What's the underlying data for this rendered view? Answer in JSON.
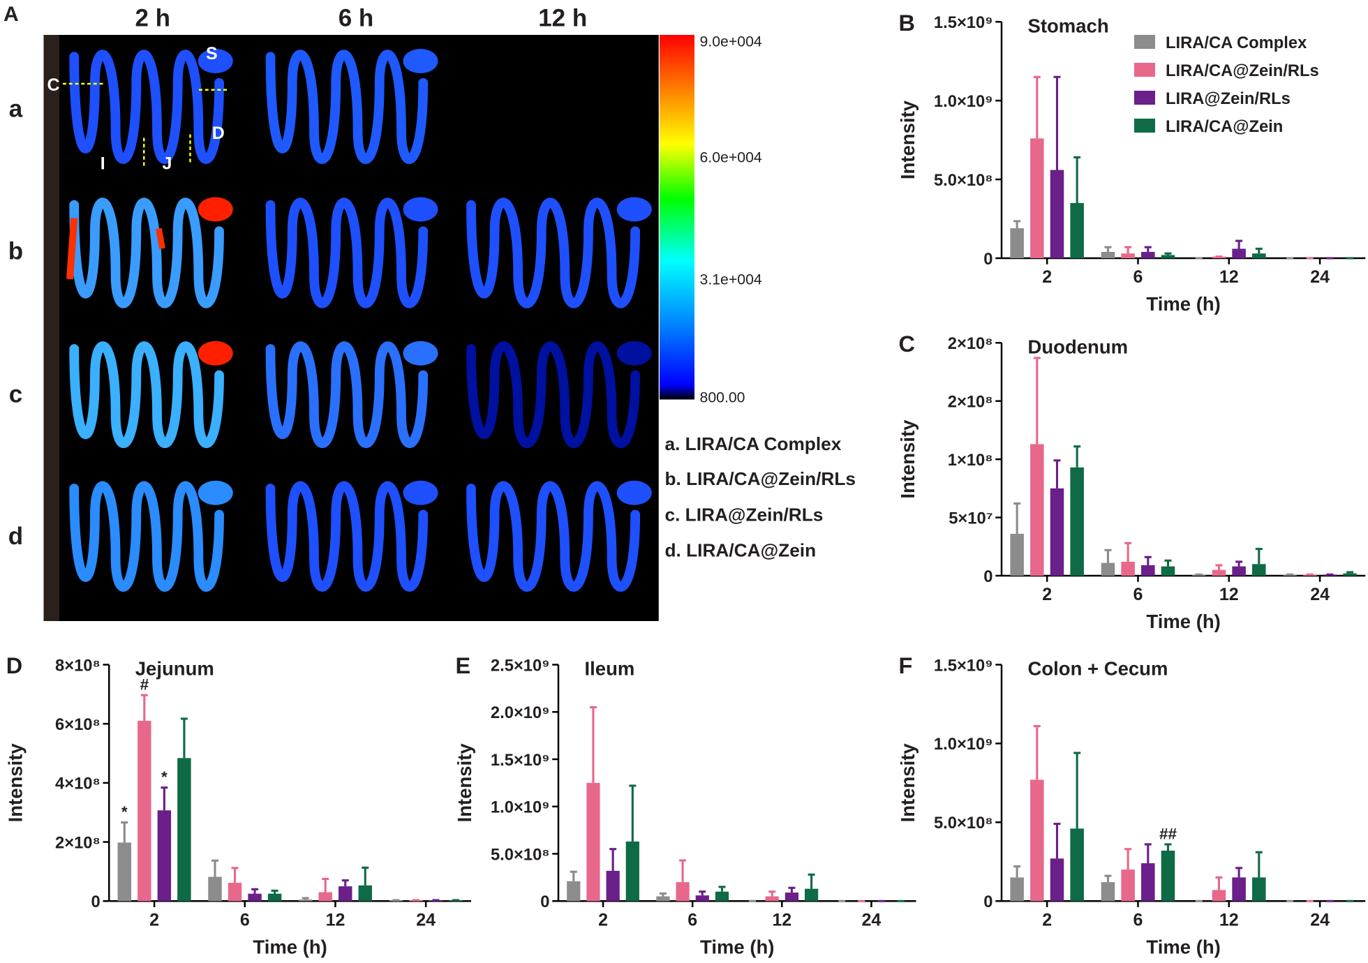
{
  "image_panel": {
    "label": "A",
    "columns": [
      "2 h",
      "6 h",
      "12 h"
    ],
    "rows": [
      "a",
      "b",
      "c",
      "d"
    ],
    "colorbar_labels": [
      "9.0e+004",
      "6.0e+004",
      "3.1e+004",
      "800.00"
    ],
    "region_labels": [
      "S",
      "C",
      "D",
      "I",
      "J"
    ],
    "legend": [
      "a. LIRA/CA Complex",
      "b. LIRA/CA@Zein/RLs",
      "c. LIRA@Zein/RLs",
      "d. LIRA/CA@Zein"
    ]
  },
  "chart_data": [
    {
      "type": "bar",
      "panel": "B",
      "title": "Stomach",
      "x_label": "Time (h)",
      "y_label": "Intensity",
      "legend": "top-right",
      "categories": [
        "2",
        "6",
        "12",
        "24"
      ],
      "ylim": [
        0,
        1500000000
      ],
      "yticks": [
        0,
        {
          "value": 500000000,
          "label": "5.0×10⁸"
        },
        {
          "value": 1000000000,
          "label": "1.0×10⁹"
        },
        {
          "value": 1500000000,
          "label": "1.5×10⁹"
        }
      ],
      "series": [
        {
          "name": "LIRA/CA Complex",
          "color": "#8c8c8c",
          "values": [
            190000000,
            40000000,
            0,
            0
          ],
          "errors": [
            45000000,
            30000000,
            0,
            0
          ]
        },
        {
          "name": "LIRA/CA@Zein/RLs",
          "color": "#e8688c",
          "values": [
            760000000,
            30000000,
            10000000,
            0
          ],
          "errors": [
            390000000,
            40000000,
            0,
            0
          ]
        },
        {
          "name": "LIRA@Zein/RLs",
          "color": "#6a1f8a",
          "values": [
            560000000,
            40000000,
            60000000,
            0
          ],
          "errors": [
            590000000,
            30000000,
            50000000,
            0
          ]
        },
        {
          "name": "LIRA/CA@Zein",
          "color": "#0e6b45",
          "values": [
            350000000,
            20000000,
            30000000,
            0
          ],
          "errors": [
            290000000,
            10000000,
            30000000,
            0
          ]
        }
      ]
    },
    {
      "type": "bar",
      "panel": "C",
      "title": "Duodenum",
      "x_label": "Time (h)",
      "y_label": "Intensity",
      "categories": [
        "2",
        "6",
        "12",
        "24"
      ],
      "ylim": [
        0,
        200000000
      ],
      "yticks": [
        0,
        {
          "value": 50000000,
          "label": "5×10⁷"
        },
        {
          "value": 100000000,
          "label": "1×10⁸"
        },
        {
          "value": 150000000,
          "label": "2×10⁸"
        },
        {
          "value": 200000000,
          "label": "2×10⁸"
        }
      ],
      "series": [
        {
          "name": "LIRA/CA Complex",
          "color": "#8c8c8c",
          "values": [
            36000000,
            11000000,
            1000000,
            1000000
          ],
          "errors": [
            26000000,
            11000000,
            0,
            0
          ]
        },
        {
          "name": "LIRA/CA@Zein/RLs",
          "color": "#e8688c",
          "values": [
            113000000,
            12000000,
            5000000,
            1000000
          ],
          "errors": [
            74000000,
            16000000,
            4000000,
            0
          ]
        },
        {
          "name": "LIRA@Zein/RLs",
          "color": "#6a1f8a",
          "values": [
            75000000,
            9000000,
            8000000,
            1000000
          ],
          "errors": [
            24000000,
            7000000,
            4000000,
            0
          ]
        },
        {
          "name": "LIRA/CA@Zein",
          "color": "#0e6b45",
          "values": [
            93000000,
            8000000,
            10000000,
            2000000
          ],
          "errors": [
            18000000,
            5000000,
            13000000,
            1000000
          ]
        }
      ]
    },
    {
      "type": "bar",
      "panel": "D",
      "title": "Jejunum",
      "x_label": "Time (h)",
      "y_label": "Intensity",
      "categories": [
        "2",
        "6",
        "12",
        "24"
      ],
      "ylim": [
        0,
        800000000
      ],
      "yticks": [
        0,
        {
          "value": 200000000,
          "label": "2×10⁸"
        },
        {
          "value": 400000000,
          "label": "4×10⁸"
        },
        {
          "value": 600000000,
          "label": "6×10⁸"
        },
        {
          "value": 800000000,
          "label": "8×10⁸"
        }
      ],
      "series": [
        {
          "name": "LIRA/CA Complex",
          "color": "#8c8c8c",
          "values": [
            198000000,
            82000000,
            5000000,
            3000000
          ],
          "errors": [
            68000000,
            55000000,
            5000000,
            0
          ],
          "annotations": [
            "*",
            null,
            null,
            null
          ]
        },
        {
          "name": "LIRA/CA@Zein/RLs",
          "color": "#e8688c",
          "values": [
            610000000,
            62000000,
            30000000,
            3000000
          ],
          "errors": [
            87000000,
            50000000,
            45000000,
            0
          ],
          "annotations": [
            "#",
            null,
            null,
            null
          ]
        },
        {
          "name": "LIRA@Zein/RLs",
          "color": "#6a1f8a",
          "values": [
            307000000,
            25000000,
            50000000,
            3000000
          ],
          "errors": [
            77000000,
            15000000,
            20000000,
            0
          ],
          "annotations": [
            "*",
            null,
            null,
            null
          ]
        },
        {
          "name": "LIRA/CA@Zein",
          "color": "#0e6b45",
          "values": [
            484000000,
            25000000,
            53000000,
            3000000
          ],
          "errors": [
            133000000,
            10000000,
            60000000,
            0
          ]
        }
      ]
    },
    {
      "type": "bar",
      "panel": "E",
      "title": "Ileum",
      "x_label": "Time (h)",
      "y_label": "Intensity",
      "categories": [
        "2",
        "6",
        "12",
        "24"
      ],
      "ylim": [
        0,
        2500000000
      ],
      "yticks": [
        0,
        {
          "value": 500000000,
          "label": "5.0×10⁸"
        },
        {
          "value": 1000000000,
          "label": "1.0×10⁹"
        },
        {
          "value": 1500000000,
          "label": "1.5×10⁹"
        },
        {
          "value": 2000000000,
          "label": "2.0×10⁹"
        },
        {
          "value": 2500000000,
          "label": "2.5×10⁹"
        }
      ],
      "series": [
        {
          "name": "LIRA/CA Complex",
          "color": "#8c8c8c",
          "values": [
            210000000,
            50000000,
            0,
            0
          ],
          "errors": [
            100000000,
            30000000,
            0,
            0
          ]
        },
        {
          "name": "LIRA/CA@Zein/RLs",
          "color": "#e8688c",
          "values": [
            1250000000,
            200000000,
            50000000,
            0
          ],
          "errors": [
            800000000,
            230000000,
            50000000,
            0
          ]
        },
        {
          "name": "LIRA@Zein/RLs",
          "color": "#6a1f8a",
          "values": [
            320000000,
            60000000,
            90000000,
            0
          ],
          "errors": [
            230000000,
            40000000,
            50000000,
            0
          ]
        },
        {
          "name": "LIRA/CA@Zein",
          "color": "#0e6b45",
          "values": [
            630000000,
            100000000,
            130000000,
            0
          ],
          "errors": [
            590000000,
            50000000,
            150000000,
            0
          ]
        }
      ]
    },
    {
      "type": "bar",
      "panel": "F",
      "title": "Colon + Cecum",
      "x_label": "Time (h)",
      "y_label": "Intensity",
      "categories": [
        "2",
        "6",
        "12",
        "24"
      ],
      "ylim": [
        0,
        1500000000
      ],
      "yticks": [
        0,
        {
          "value": 500000000,
          "label": "5.0×10⁸"
        },
        {
          "value": 1000000000,
          "label": "1.0×10⁹"
        },
        {
          "value": 1500000000,
          "label": "1.5×10⁹"
        }
      ],
      "series": [
        {
          "name": "LIRA/CA Complex",
          "color": "#8c8c8c",
          "values": [
            150000000,
            120000000,
            0,
            0
          ],
          "errors": [
            70000000,
            40000000,
            0,
            0
          ]
        },
        {
          "name": "LIRA/CA@Zein/RLs",
          "color": "#e8688c",
          "values": [
            770000000,
            200000000,
            70000000,
            0
          ],
          "errors": [
            340000000,
            130000000,
            80000000,
            0
          ]
        },
        {
          "name": "LIRA@Zein/RLs",
          "color": "#6a1f8a",
          "values": [
            270000000,
            240000000,
            150000000,
            0
          ],
          "errors": [
            220000000,
            120000000,
            60000000,
            0
          ]
        },
        {
          "name": "LIRA/CA@Zein",
          "color": "#0e6b45",
          "values": [
            460000000,
            320000000,
            150000000,
            0
          ],
          "errors": [
            480000000,
            40000000,
            160000000,
            0
          ],
          "annotations": [
            null,
            "##",
            null,
            null
          ]
        }
      ]
    }
  ]
}
